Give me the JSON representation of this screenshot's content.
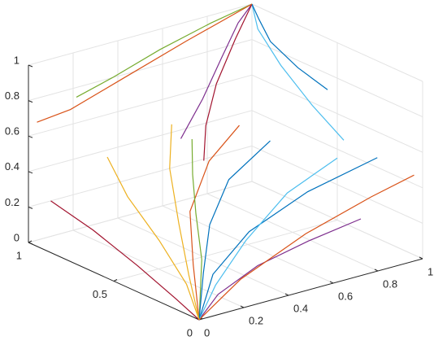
{
  "chart_data": {
    "type": "line3d",
    "xlim": [
      0,
      1
    ],
    "ylim": [
      0,
      1
    ],
    "zlim": [
      0,
      1
    ],
    "xticks": [
      0,
      0.2,
      0.4,
      0.6,
      0.8,
      1
    ],
    "yticks": [
      0,
      0.5,
      1
    ],
    "zticks": [
      0,
      0.2,
      0.4,
      0.6,
      0.8,
      1
    ],
    "grid": true,
    "series": [
      {
        "color": "#0072BD",
        "x": [
          0,
          0.1,
          0.3,
          0.6,
          0.95
        ],
        "y": [
          0,
          0.05,
          0.1,
          0.15,
          0.2
        ],
        "z": [
          0,
          0.2,
          0.35,
          0.45,
          0.5
        ]
      },
      {
        "color": "#D95319",
        "x": [
          0,
          0.05,
          0.15,
          0.35,
          0.6
        ],
        "y": [
          0,
          0.1,
          0.25,
          0.4,
          0.55
        ],
        "z": [
          0,
          0.25,
          0.45,
          0.6,
          0.65
        ]
      },
      {
        "color": "#EDB120",
        "x": [
          0,
          0.02,
          0.05,
          0.1,
          0.2
        ],
        "y": [
          0,
          0.1,
          0.3,
          0.55,
          0.8
        ],
        "z": [
          0,
          0.15,
          0.3,
          0.42,
          0.5
        ]
      },
      {
        "color": "#7E2F8E",
        "x": [
          0,
          0.1,
          0.3,
          0.55,
          0.8
        ],
        "y": [
          0,
          0.02,
          0.05,
          0.08,
          0.1
        ],
        "z": [
          0,
          0.1,
          0.18,
          0.22,
          0.25
        ]
      },
      {
        "color": "#77AC30",
        "x": [
          0,
          0.05,
          0.1,
          0.2,
          0.35
        ],
        "y": [
          0,
          0.05,
          0.15,
          0.3,
          0.5
        ],
        "z": [
          0,
          0.3,
          0.5,
          0.62,
          0.68
        ]
      },
      {
        "color": "#4DBEEE",
        "x": [
          0,
          0.15,
          0.4,
          0.7,
          1
        ],
        "y": [
          0,
          0.1,
          0.25,
          0.4,
          0.5
        ],
        "z": [
          0,
          0.1,
          0.2,
          0.3,
          0.35
        ]
      },
      {
        "color": "#A2142F",
        "x": [
          0,
          0.01,
          0.03,
          0.06,
          0.1
        ],
        "y": [
          0,
          0.15,
          0.4,
          0.7,
          1
        ],
        "z": [
          0,
          0.05,
          0.12,
          0.18,
          0.2
        ]
      },
      {
        "color": "#0072BD",
        "x": [
          0,
          0.08,
          0.2,
          0.4,
          0.7
        ],
        "y": [
          0,
          0.08,
          0.2,
          0.35,
          0.5
        ],
        "z": [
          0,
          0.2,
          0.38,
          0.5,
          0.55
        ]
      },
      {
        "color": "#D95319",
        "x": [
          0,
          0.2,
          0.5,
          0.8,
          1
        ],
        "y": [
          0,
          0.02,
          0.03,
          0.04,
          0.05
        ],
        "z": [
          0,
          0.15,
          0.3,
          0.4,
          0.45
        ]
      },
      {
        "color": "#EDB120",
        "x": [
          0,
          0.03,
          0.1,
          0.25,
          0.45
        ],
        "y": [
          0,
          0.1,
          0.25,
          0.5,
          0.75
        ],
        "z": [
          0,
          0.2,
          0.4,
          0.55,
          0.62
        ]
      },
      {
        "color": "#7E2F8E",
        "x": [
          1,
          0.9,
          0.75,
          0.55,
          0.3
        ],
        "y": [
          1,
          0.95,
          0.85,
          0.7,
          0.5
        ],
        "z": [
          1,
          0.95,
          0.85,
          0.75,
          0.7
        ]
      },
      {
        "color": "#77AC30",
        "x": [
          1,
          0.8,
          0.55,
          0.3,
          0.1
        ],
        "y": [
          1,
          0.98,
          0.95,
          0.9,
          0.85
        ],
        "z": [
          1,
          0.97,
          0.92,
          0.87,
          0.85
        ]
      },
      {
        "color": "#4DBEEE",
        "x": [
          1,
          0.95,
          0.9,
          0.85,
          0.8
        ],
        "y": [
          1,
          0.9,
          0.7,
          0.45,
          0.2
        ],
        "z": [
          1,
          0.92,
          0.82,
          0.72,
          0.65
        ]
      },
      {
        "color": "#A2142F",
        "x": [
          1,
          0.85,
          0.65,
          0.45,
          0.25
        ],
        "y": [
          1,
          0.9,
          0.75,
          0.55,
          0.3
        ],
        "z": [
          1,
          0.9,
          0.78,
          0.7,
          0.68
        ]
      },
      {
        "color": "#0072BD",
        "x": [
          1,
          0.97,
          0.93,
          0.9,
          0.88
        ],
        "y": [
          1,
          0.92,
          0.8,
          0.6,
          0.4
        ],
        "z": [
          1,
          0.96,
          0.9,
          0.85,
          0.82
        ]
      },
      {
        "color": "#D95319",
        "x": [
          1,
          0.7,
          0.4,
          0.15,
          0
        ],
        "y": [
          1,
          0.99,
          0.97,
          0.95,
          0.95
        ],
        "z": [
          1,
          0.9,
          0.8,
          0.72,
          0.7
        ]
      }
    ]
  }
}
